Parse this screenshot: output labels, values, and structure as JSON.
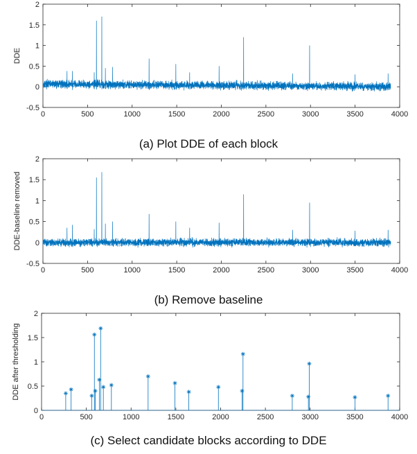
{
  "chart_data": [
    {
      "type": "line",
      "caption": "(a) Plot DDE of each block",
      "ylabel": "DDE",
      "xlim": [
        0,
        4000
      ],
      "ylim": [
        -0.5,
        2
      ],
      "xticks": [
        0,
        500,
        1000,
        1500,
        2000,
        2500,
        3000,
        3500,
        4000
      ],
      "yticks": [
        -0.5,
        0,
        0.5,
        1,
        1.5,
        2
      ],
      "xtick_labels": [
        "0",
        "500",
        "1000",
        "1500",
        "2000",
        "2500",
        "3000",
        "3500",
        "4000"
      ],
      "ytick_labels": [
        "-0.5",
        "0",
        "0.5",
        "1",
        "1.5",
        "2"
      ],
      "n_points": 3900,
      "noise_baseline": {
        "start": 0.07,
        "end": 0.0,
        "amplitude": 0.13
      },
      "peaks": [
        [
          270,
          0.38
        ],
        [
          330,
          0.38
        ],
        [
          575,
          0.35
        ],
        [
          600,
          1.6
        ],
        [
          660,
          1.7
        ],
        [
          700,
          0.45
        ],
        [
          780,
          0.48
        ],
        [
          1190,
          0.68
        ],
        [
          1490,
          0.55
        ],
        [
          1645,
          0.35
        ],
        [
          1975,
          0.5
        ],
        [
          2250,
          1.2
        ],
        [
          2800,
          0.32
        ],
        [
          2990,
          1.0
        ],
        [
          3500,
          0.3
        ],
        [
          3870,
          0.32
        ]
      ],
      "color": "#0072BD"
    },
    {
      "type": "line",
      "caption": "(b) Remove baseline",
      "ylabel": "DDE-baseline removed",
      "xlim": [
        0,
        4000
      ],
      "ylim": [
        -0.5,
        2
      ],
      "xticks": [
        0,
        500,
        1000,
        1500,
        2000,
        2500,
        3000,
        3500,
        4000
      ],
      "yticks": [
        -0.5,
        0,
        0.5,
        1,
        1.5,
        2
      ],
      "xtick_labels": [
        "0",
        "500",
        "1000",
        "1500",
        "2000",
        "2500",
        "3000",
        "3500",
        "4000"
      ],
      "ytick_labels": [
        "-0.5",
        "0",
        "0.5",
        "1",
        "1.5",
        "2"
      ],
      "n_points": 3900,
      "noise_baseline": {
        "start": 0.0,
        "end": 0.0,
        "amplitude": 0.12
      },
      "peaks": [
        [
          270,
          0.35
        ],
        [
          330,
          0.42
        ],
        [
          575,
          0.32
        ],
        [
          600,
          1.55
        ],
        [
          660,
          1.68
        ],
        [
          700,
          0.45
        ],
        [
          780,
          0.5
        ],
        [
          1190,
          0.68
        ],
        [
          1490,
          0.5
        ],
        [
          1645,
          0.35
        ],
        [
          1975,
          0.47
        ],
        [
          2250,
          1.15
        ],
        [
          2800,
          0.3
        ],
        [
          2990,
          0.95
        ],
        [
          3500,
          0.28
        ],
        [
          3870,
          0.3
        ]
      ],
      "color": "#0072BD"
    },
    {
      "type": "scatter",
      "caption": "(c) Select candidate blocks according to DDE",
      "ylabel": "DDE after thresholding",
      "xlim": [
        0,
        4000
      ],
      "ylim": [
        0,
        2
      ],
      "xticks": [
        0,
        500,
        1000,
        1500,
        2000,
        2500,
        3000,
        3500,
        4000
      ],
      "yticks": [
        0,
        0.5,
        1,
        1.5,
        2
      ],
      "xtick_labels": [
        "0",
        "500",
        "1000",
        "1500",
        "2000",
        "2500",
        "3000",
        "3500",
        "4000"
      ],
      "ytick_labels": [
        "0",
        "0.5",
        "1",
        "1.5",
        "2"
      ],
      "points": [
        [
          270,
          0.35
        ],
        [
          330,
          0.43
        ],
        [
          560,
          0.3
        ],
        [
          590,
          1.56
        ],
        [
          600,
          0.4
        ],
        [
          645,
          0.63
        ],
        [
          660,
          1.69
        ],
        [
          690,
          0.48
        ],
        [
          780,
          0.52
        ],
        [
          1190,
          0.7
        ],
        [
          1490,
          0.56
        ],
        [
          1645,
          0.38
        ],
        [
          1975,
          0.48
        ],
        [
          2240,
          0.4
        ],
        [
          2250,
          1.16
        ],
        [
          2800,
          0.3
        ],
        [
          2980,
          0.28
        ],
        [
          2990,
          0.96
        ],
        [
          3500,
          0.27
        ],
        [
          3870,
          0.3
        ]
      ],
      "color": "#0072BD"
    }
  ]
}
